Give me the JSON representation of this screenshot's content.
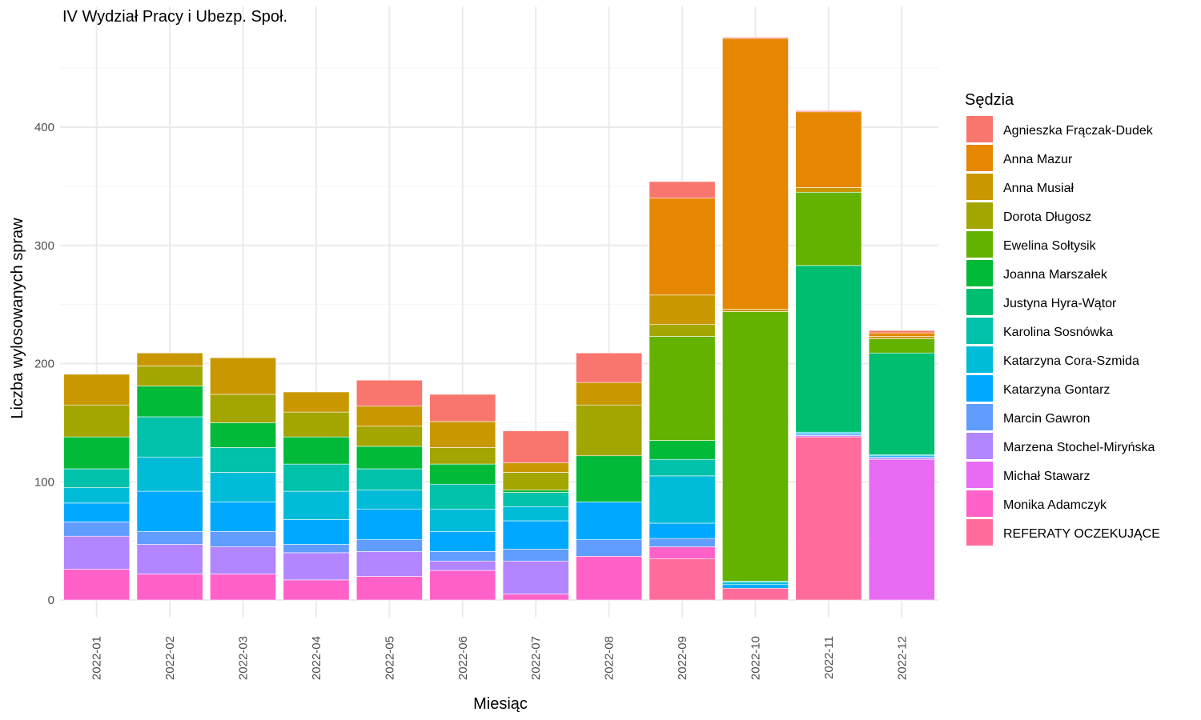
{
  "chart_data": {
    "type": "bar",
    "stacked": true,
    "title": "IV Wydział Pracy i Ubezp. Społ.",
    "xlabel": "Miesiąc",
    "ylabel": "Liczba wylosowanych spraw",
    "ylim": [
      0,
      480
    ],
    "yticks": [
      0,
      100,
      200,
      300,
      400
    ],
    "grid": true,
    "legend_title": "Sędzia",
    "legend_position": "right",
    "categories": [
      "2022-01",
      "2022-02",
      "2022-03",
      "2022-04",
      "2022-05",
      "2022-06",
      "2022-07",
      "2022-08",
      "2022-09",
      "2022-10",
      "2022-11",
      "2022-12"
    ],
    "series": [
      {
        "name": "REFERATY OCZEKUJĄCE",
        "color": "#FF6C9C",
        "values": [
          0,
          0,
          0,
          0,
          0,
          0,
          0,
          0,
          35,
          10,
          138,
          0
        ]
      },
      {
        "name": "Monika Adamczyk",
        "color": "#FF61C9",
        "values": [
          26,
          22,
          22,
          17,
          20,
          25,
          5,
          37,
          10,
          0,
          0,
          0
        ]
      },
      {
        "name": "Michał Stawarz",
        "color": "#E76BF3",
        "values": [
          0,
          0,
          0,
          0,
          0,
          0,
          0,
          0,
          0,
          0,
          1,
          119
        ]
      },
      {
        "name": "Marzena Stochel-Miryńska",
        "color": "#B385FF",
        "values": [
          28,
          25,
          23,
          23,
          21,
          8,
          28,
          0,
          0,
          0,
          0,
          1
        ]
      },
      {
        "name": "Marcin Gawron",
        "color": "#619CFF",
        "values": [
          12,
          11,
          13,
          7,
          10,
          8,
          10,
          14,
          7,
          0,
          1,
          1
        ]
      },
      {
        "name": "Katarzyna Gontarz",
        "color": "#00A9FF",
        "values": [
          16,
          34,
          25,
          21,
          26,
          17,
          24,
          32,
          13,
          3,
          1,
          1
        ]
      },
      {
        "name": "Katarzyna Cora-Szmida",
        "color": "#00BCD8",
        "values": [
          13,
          29,
          25,
          24,
          16,
          19,
          12,
          0,
          40,
          2,
          1,
          1
        ]
      },
      {
        "name": "Karolina Sosnówka",
        "color": "#00C1AA",
        "values": [
          16,
          34,
          21,
          23,
          18,
          21,
          12,
          0,
          14,
          1,
          0,
          0
        ]
      },
      {
        "name": "Justyna Hyra-Wątor",
        "color": "#00BE70",
        "values": [
          0,
          0,
          0,
          0,
          0,
          0,
          0,
          0,
          0,
          0,
          141,
          86
        ]
      },
      {
        "name": "Joanna Marszałek",
        "color": "#00BA38",
        "values": [
          27,
          26,
          21,
          23,
          19,
          17,
          2,
          39,
          16,
          0,
          0,
          0
        ]
      },
      {
        "name": "Ewelina Sołtysik",
        "color": "#64B200",
        "values": [
          0,
          0,
          0,
          0,
          0,
          0,
          0,
          0,
          88,
          228,
          62,
          12
        ]
      },
      {
        "name": "Dorota Długosz",
        "color": "#A3A500",
        "values": [
          27,
          17,
          24,
          21,
          17,
          14,
          15,
          43,
          10,
          0,
          0,
          0
        ]
      },
      {
        "name": "Anna Musiał",
        "color": "#C99800",
        "values": [
          26,
          11,
          31,
          17,
          17,
          22,
          8,
          19,
          25,
          2,
          4,
          2
        ]
      },
      {
        "name": "Anna Mazur",
        "color": "#E58700",
        "values": [
          0,
          0,
          0,
          0,
          0,
          0,
          0,
          0,
          82,
          229,
          64,
          3
        ]
      },
      {
        "name": "Agnieszka Frączak-Dudek",
        "color": "#F8766D",
        "values": [
          0,
          0,
          0,
          0,
          22,
          23,
          27,
          25,
          14,
          1,
          1,
          2
        ]
      }
    ],
    "legend_entries": [
      "Agnieszka Frączak-Dudek",
      "Anna Mazur",
      "Anna Musiał",
      "Dorota Długosz",
      "Ewelina Sołtysik",
      "Joanna Marszałek",
      "Justyna Hyra-Wątor",
      "Karolina Sosnówka",
      "Katarzyna Cora-Szmida",
      "Katarzyna Gontarz",
      "Marcin Gawron",
      "Marzena Stochel-Miryńska",
      "Michał Stawarz",
      "Monika Adamczyk",
      "REFERATY OCZEKUJĄCE"
    ]
  }
}
